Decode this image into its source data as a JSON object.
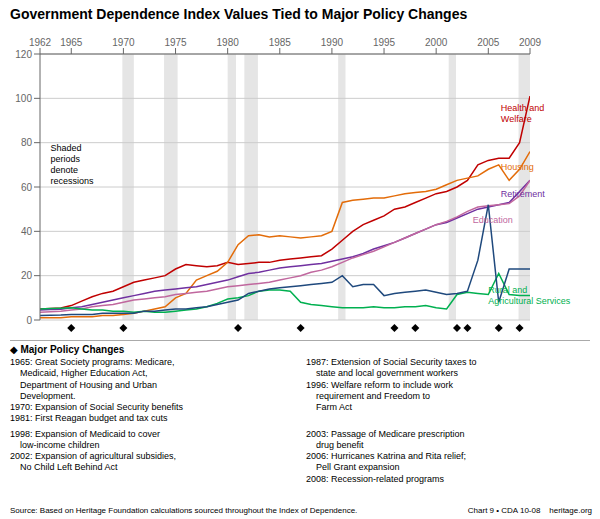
{
  "chart_data": {
    "type": "line",
    "title": "Government Dependence Index Values Tied to Major Policy Changes",
    "x": [
      1962,
      1963,
      1964,
      1965,
      1966,
      1967,
      1968,
      1969,
      1970,
      1971,
      1972,
      1973,
      1974,
      1975,
      1976,
      1977,
      1978,
      1979,
      1980,
      1981,
      1982,
      1983,
      1984,
      1985,
      1986,
      1987,
      1988,
      1989,
      1990,
      1991,
      1992,
      1993,
      1994,
      1995,
      1996,
      1997,
      1998,
      1999,
      2000,
      2001,
      2002,
      2003,
      2004,
      2005,
      2006,
      2007,
      2008,
      2009
    ],
    "series": [
      {
        "name": "Health and\nWelfare",
        "color": "#c00000",
        "values": [
          5.0,
          5.2,
          5.4,
          6.5,
          8.5,
          10.5,
          12.0,
          13.0,
          15.0,
          17.0,
          18.0,
          19.0,
          20.0,
          23.0,
          25.0,
          24.5,
          24.0,
          24.5,
          26.0,
          25.0,
          25.5,
          26.0,
          26.0,
          27.0,
          27.5,
          28.0,
          28.5,
          29.0,
          32.0,
          36.0,
          40.0,
          43.0,
          45.0,
          47.0,
          50.0,
          51.0,
          53.0,
          55.0,
          57.0,
          58.0,
          60.0,
          63.0,
          70.0,
          72.0,
          73.0,
          73.0,
          80.0,
          101.0
        ]
      },
      {
        "name": "Housing",
        "color": "#e36c09",
        "values": [
          1.0,
          1.0,
          1.0,
          1.5,
          1.5,
          1.5,
          2.0,
          2.0,
          2.5,
          3.0,
          4.0,
          5.0,
          6.0,
          10.0,
          12.0,
          18.0,
          20.0,
          22.0,
          26.0,
          34.0,
          38.0,
          38.5,
          37.5,
          38.0,
          37.5,
          37.0,
          37.5,
          38.0,
          40.0,
          53.0,
          54.0,
          54.5,
          55.0,
          55.0,
          56.0,
          57.0,
          57.5,
          58.0,
          59.0,
          61.0,
          63.0,
          64.0,
          65.0,
          68.0,
          70.0,
          63.0,
          68.0,
          76.0
        ]
      },
      {
        "name": "Retirement",
        "color": "#7030a0",
        "values": [
          4.5,
          4.7,
          4.9,
          5.5,
          6.0,
          7.0,
          8.0,
          9.0,
          10.0,
          11.0,
          12.0,
          13.0,
          13.5,
          14.0,
          14.5,
          15.0,
          16.0,
          17.0,
          18.0,
          19.5,
          21.0,
          21.5,
          22.5,
          23.5,
          24.0,
          24.5,
          25.0,
          25.5,
          26.5,
          27.5,
          28.5,
          30.0,
          32.0,
          33.5,
          35.0,
          37.0,
          39.0,
          41.0,
          43.0,
          44.0,
          46.0,
          48.0,
          50.0,
          51.0,
          52.0,
          53.0,
          58.0,
          63.0
        ]
      },
      {
        "name": "Education",
        "color": "#c0679e",
        "values": [
          3.5,
          3.7,
          3.9,
          4.5,
          5.0,
          6.0,
          6.5,
          7.0,
          8.0,
          9.0,
          9.5,
          10.0,
          10.5,
          11.5,
          12.0,
          12.5,
          13.0,
          14.0,
          15.0,
          15.5,
          16.0,
          16.5,
          17.0,
          18.0,
          19.0,
          20.0,
          21.5,
          22.5,
          24.0,
          26.0,
          28.0,
          29.5,
          31.0,
          33.0,
          35.0,
          37.0,
          39.0,
          41.0,
          43.0,
          44.5,
          46.5,
          49.0,
          51.0,
          51.5,
          52.0,
          52.5,
          56.0,
          63.0
        ]
      },
      {
        "name": "Rural and\nAgricultural Services",
        "color": "#00b050",
        "values": [
          5.0,
          5.2,
          5.3,
          5.5,
          5.0,
          4.5,
          4.5,
          4.0,
          4.0,
          3.5,
          4.0,
          3.5,
          3.5,
          4.0,
          4.5,
          5.0,
          6.0,
          7.5,
          9.5,
          10.0,
          11.0,
          13.0,
          13.5,
          13.5,
          13.0,
          8.0,
          7.0,
          6.5,
          6.0,
          5.5,
          5.5,
          5.5,
          6.0,
          5.5,
          5.5,
          6.0,
          6.0,
          6.5,
          5.5,
          5.0,
          11.5,
          12.5,
          12.0,
          11.5,
          21.0,
          11.5,
          11.0,
          11.0
        ]
      },
      {
        "color": "#1f497d",
        "values": [
          2.0,
          2.1,
          2.2,
          2.5,
          2.5,
          2.5,
          3.0,
          3.0,
          3.0,
          3.0,
          4.0,
          4.0,
          4.5,
          5.0,
          5.0,
          5.5,
          6.0,
          7.0,
          8.0,
          9.0,
          12.0,
          13.0,
          14.0,
          14.5,
          15.0,
          15.5,
          16.0,
          16.5,
          17.0,
          20.0,
          15.0,
          16.0,
          16.0,
          11.0,
          12.0,
          12.5,
          13.0,
          13.5,
          12.5,
          11.5,
          12.0,
          13.0,
          27.0,
          52.0,
          8.0,
          23.0,
          23.0,
          23.0
        ]
      }
    ],
    "xlim": [
      1962,
      2009
    ],
    "xticks": [
      1962,
      1965,
      1970,
      1975,
      1980,
      1985,
      1990,
      1995,
      2000,
      2005,
      2009
    ],
    "ylim": [
      0,
      120
    ],
    "yticks": [
      0,
      20,
      40,
      60,
      80,
      100,
      120
    ],
    "grid": true,
    "recession_bands": [
      [
        1969.9,
        1971.0
      ],
      [
        1973.9,
        1975.2
      ],
      [
        1980.0,
        1980.8
      ],
      [
        1981.6,
        1982.9
      ],
      [
        1990.6,
        1991.3
      ],
      [
        2001.2,
        2001.9
      ],
      [
        2007.9,
        2009.5
      ]
    ],
    "policy_changes": {
      "years": [
        1965,
        1970,
        1981,
        1987,
        1996,
        1998,
        2002,
        2003,
        2006,
        2008
      ],
      "marker": "diamond",
      "color": "#000000"
    },
    "note": "Shaded\nperiods\ndenote\nrecessions",
    "policy_header": "◆ Major Policy Changes",
    "policy_notes": [
      "1965: Great Society programs: Medicare,\n    Medicaid, Higher Education Act,\n    Department of Housing and Urban\n    Development.\n1970: Expansion of Social Security benefits\n1981: First Reagan budget and tax cuts",
      "1987: Extension of Social Security taxes to\n    state and local government workers\n1996: Welfare reform to include work\n    requirement and Freedom to\n    Farm Act",
      "1998: Expansion of Medicaid to cover\n    low-income children\n2002: Expansion of agricultural subsidies,\n    No Child Left Behind Act",
      "2003: Passage of Medicare prescription\n    drug benefit\n2006: Hurricanes Katrina and Rita relief;\n    Pell Grant expansion\n2008: Recession-related programs"
    ],
    "source": "Source: Based on Heritage Foundation calculations sourced throughout the Index of Dependence.",
    "chart_id": "Chart 9 • CDA 10-08    heritage.org"
  }
}
